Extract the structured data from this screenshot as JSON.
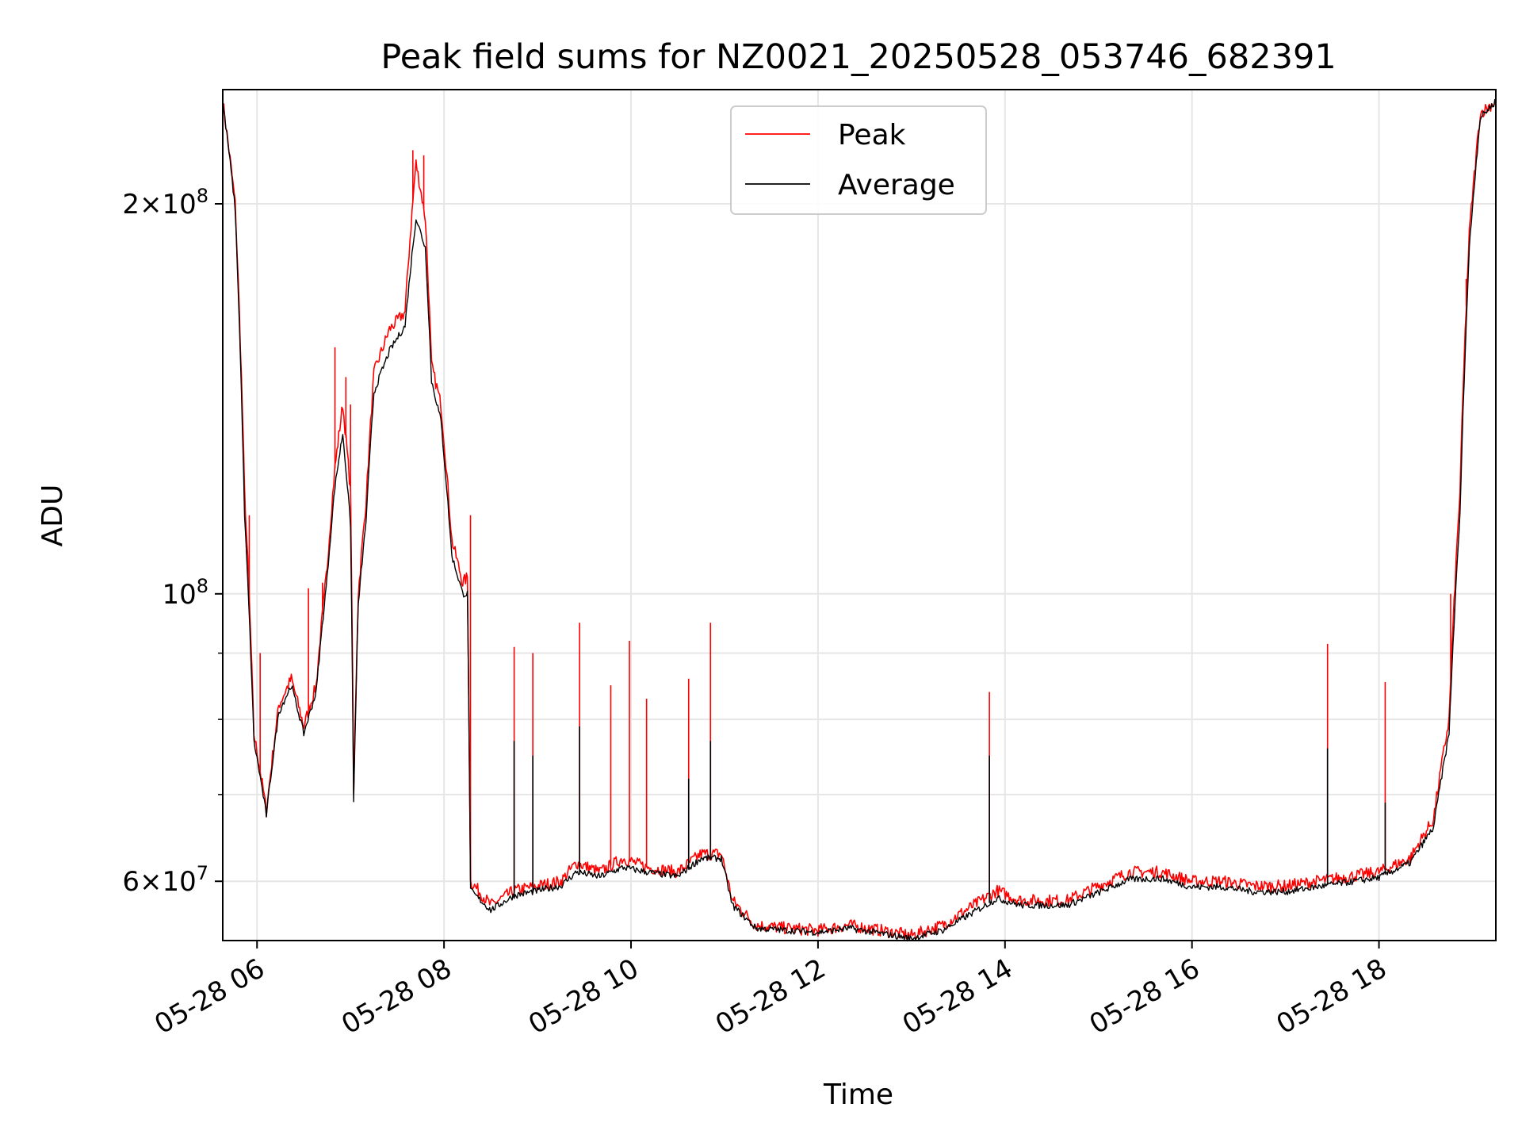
{
  "chart_data": {
    "type": "line",
    "title": "Peak field sums for NZ0021_20250528_053746_682391",
    "xlabel": "Time",
    "ylabel": "ADU",
    "yscale": "log",
    "xlim": [
      "2025-05-28 05:38",
      "2025-05-28 19:15"
    ],
    "ylim": [
      54000000,
      245000000
    ],
    "x_tick_labels": [
      "05-28 06",
      "05-28 08",
      "05-28 10",
      "05-28 12",
      "05-28 14",
      "05-28 16",
      "05-28 18"
    ],
    "x_tick_hours": [
      6,
      8,
      10,
      12,
      14,
      16,
      18
    ],
    "y_tick_labels": [
      {
        "value": 200000000,
        "base": "2×10",
        "exp": "8"
      },
      {
        "value": 100000000,
        "base": "10",
        "exp": "8"
      },
      {
        "value": 60000000,
        "base": "6×10",
        "exp": "7"
      }
    ],
    "y_minor_ticks": [
      70000000,
      80000000,
      90000000
    ],
    "grid": true,
    "legend_position": "top-center",
    "series": [
      {
        "name": "Peak",
        "color": "#ff0000",
        "points": [
          [
            "05:38",
            240000000
          ],
          [
            "05:46",
            200000000
          ],
          [
            "05:52",
            120000000
          ],
          [
            "05:58",
            78000000
          ],
          [
            "06:06",
            68000000
          ],
          [
            "06:14",
            82000000
          ],
          [
            "06:22",
            86000000
          ],
          [
            "06:30",
            79000000
          ],
          [
            "06:38",
            85000000
          ],
          [
            "06:45",
            105000000
          ],
          [
            "06:50",
            125000000
          ],
          [
            "06:55",
            140000000
          ],
          [
            "07:00",
            120000000
          ],
          [
            "07:02",
            70000000
          ],
          [
            "07:05",
            100000000
          ],
          [
            "07:10",
            118000000
          ],
          [
            "07:15",
            148000000
          ],
          [
            "07:25",
            160000000
          ],
          [
            "07:35",
            165000000
          ],
          [
            "07:42",
            215000000
          ],
          [
            "07:48",
            195000000
          ],
          [
            "07:52",
            150000000
          ],
          [
            "07:58",
            140000000
          ],
          [
            "08:05",
            110000000
          ],
          [
            "08:12",
            102000000
          ],
          [
            "08:15",
            103000000
          ],
          [
            "08:17",
            60000000
          ],
          [
            "08:30",
            57500000
          ],
          [
            "08:45",
            59000000
          ],
          [
            "09:00",
            59500000
          ],
          [
            "09:15",
            60000000
          ],
          [
            "09:25",
            62000000
          ],
          [
            "09:40",
            61000000
          ],
          [
            "09:55",
            62500000
          ],
          [
            "10:10",
            61500000
          ],
          [
            "10:30",
            61000000
          ],
          [
            "10:45",
            63000000
          ],
          [
            "10:58",
            63000000
          ],
          [
            "11:05",
            58000000
          ],
          [
            "11:20",
            55500000
          ],
          [
            "11:40",
            55200000
          ],
          [
            "12:00",
            55000000
          ],
          [
            "12:20",
            55500000
          ],
          [
            "12:40",
            55000000
          ],
          [
            "13:00",
            54500000
          ],
          [
            "13:20",
            55500000
          ],
          [
            "13:40",
            57500000
          ],
          [
            "13:55",
            59000000
          ],
          [
            "14:10",
            58000000
          ],
          [
            "14:40",
            58000000
          ],
          [
            "15:00",
            59500000
          ],
          [
            "15:20",
            61000000
          ],
          [
            "15:40",
            61000000
          ],
          [
            "16:00",
            60000000
          ],
          [
            "16:20",
            60000000
          ],
          [
            "16:40",
            59500000
          ],
          [
            "17:00",
            59500000
          ],
          [
            "17:20",
            60000000
          ],
          [
            "17:40",
            60500000
          ],
          [
            "18:00",
            61000000
          ],
          [
            "18:20",
            62500000
          ],
          [
            "18:35",
            67000000
          ],
          [
            "18:45",
            80000000
          ],
          [
            "18:52",
            120000000
          ],
          [
            "18:58",
            190000000
          ],
          [
            "19:05",
            235000000
          ],
          [
            "19:15",
            240000000
          ]
        ],
        "spikes": [
          [
            "05:55",
            115000000
          ],
          [
            "06:02",
            90000000
          ],
          [
            "06:33",
            101000000
          ],
          [
            "06:42",
            102000000
          ],
          [
            "06:50",
            155000000
          ],
          [
            "06:57",
            147000000
          ],
          [
            "07:00",
            140000000
          ],
          [
            "07:40",
            220000000
          ],
          [
            "07:47",
            218000000
          ],
          [
            "08:17",
            115000000
          ],
          [
            "08:45",
            91000000
          ],
          [
            "08:57",
            90000000
          ],
          [
            "09:27",
            95000000
          ],
          [
            "09:47",
            85000000
          ],
          [
            "09:59",
            92000000
          ],
          [
            "10:10",
            83000000
          ],
          [
            "10:37",
            86000000
          ],
          [
            "10:51",
            95000000
          ],
          [
            "13:50",
            84000000
          ],
          [
            "17:27",
            91500000
          ],
          [
            "18:04",
            85500000
          ],
          [
            "18:46",
            100000000
          ],
          [
            "18:56",
            175000000
          ]
        ]
      },
      {
        "name": "Average",
        "color": "#000000",
        "points": [
          [
            "05:38",
            240000000
          ],
          [
            "05:46",
            198000000
          ],
          [
            "05:52",
            115000000
          ],
          [
            "05:58",
            77000000
          ],
          [
            "06:06",
            67500000
          ],
          [
            "06:14",
            81000000
          ],
          [
            "06:22",
            85000000
          ],
          [
            "06:30",
            78000000
          ],
          [
            "06:38",
            84000000
          ],
          [
            "06:45",
            103000000
          ],
          [
            "06:50",
            121000000
          ],
          [
            "06:55",
            133000000
          ],
          [
            "07:00",
            113000000
          ],
          [
            "07:02",
            69000000
          ],
          [
            "07:05",
            98000000
          ],
          [
            "07:10",
            114000000
          ],
          [
            "07:15",
            143000000
          ],
          [
            "07:25",
            154000000
          ],
          [
            "07:35",
            161000000
          ],
          [
            "07:42",
            195000000
          ],
          [
            "07:48",
            185000000
          ],
          [
            "07:52",
            146000000
          ],
          [
            "07:58",
            136000000
          ],
          [
            "08:05",
            107000000
          ],
          [
            "08:12",
            100000000
          ],
          [
            "08:15",
            100000000
          ],
          [
            "08:17",
            59000000
          ],
          [
            "08:30",
            57000000
          ],
          [
            "08:45",
            58500000
          ],
          [
            "09:00",
            59000000
          ],
          [
            "09:15",
            59500000
          ],
          [
            "09:25",
            61000000
          ],
          [
            "09:40",
            60500000
          ],
          [
            "09:55",
            61500000
          ],
          [
            "10:10",
            61000000
          ],
          [
            "10:30",
            60500000
          ],
          [
            "10:45",
            62500000
          ],
          [
            "10:58",
            62500000
          ],
          [
            "11:05",
            57500000
          ],
          [
            "11:20",
            55200000
          ],
          [
            "11:40",
            55000000
          ],
          [
            "12:00",
            54800000
          ],
          [
            "12:20",
            55200000
          ],
          [
            "12:40",
            54700000
          ],
          [
            "13:00",
            54200000
          ],
          [
            "13:20",
            55000000
          ],
          [
            "13:40",
            56800000
          ],
          [
            "13:55",
            58200000
          ],
          [
            "14:10",
            57500000
          ],
          [
            "14:40",
            57500000
          ],
          [
            "15:00",
            58800000
          ],
          [
            "15:20",
            60200000
          ],
          [
            "15:40",
            60300000
          ],
          [
            "16:00",
            59400000
          ],
          [
            "16:20",
            59400000
          ],
          [
            "16:40",
            58900000
          ],
          [
            "17:00",
            58900000
          ],
          [
            "17:20",
            59400000
          ],
          [
            "17:40",
            59900000
          ],
          [
            "18:00",
            60400000
          ],
          [
            "18:20",
            62000000
          ],
          [
            "18:35",
            66000000
          ],
          [
            "18:45",
            78000000
          ],
          [
            "18:52",
            115000000
          ],
          [
            "18:58",
            185000000
          ],
          [
            "19:05",
            233000000
          ],
          [
            "19:15",
            240000000
          ]
        ],
        "spikes": [
          [
            "08:45",
            77000000
          ],
          [
            "08:57",
            75000000
          ],
          [
            "09:27",
            79000000
          ],
          [
            "10:37",
            72000000
          ],
          [
            "10:51",
            77000000
          ],
          [
            "13:50",
            75000000
          ],
          [
            "17:27",
            76000000
          ],
          [
            "18:04",
            69000000
          ]
        ]
      }
    ]
  }
}
